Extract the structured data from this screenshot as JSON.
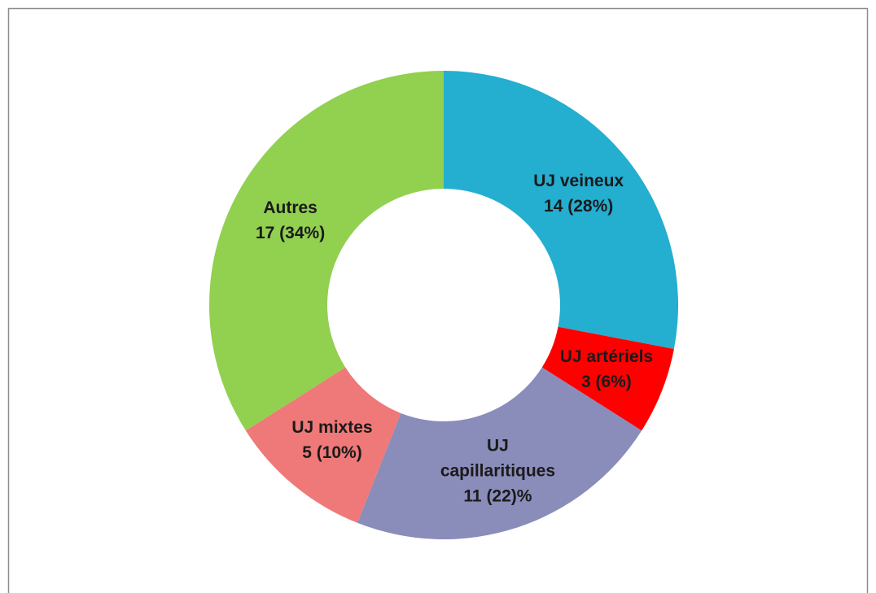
{
  "chart_data": {
    "type": "donut",
    "categories": [
      "UJ veineux",
      "UJ artériels",
      "UJ capillaritiques",
      "UJ mixtes",
      "Autres"
    ],
    "values": [
      14,
      3,
      11,
      5,
      17
    ],
    "value_labels": [
      "14 (28%)",
      "3 (6%)",
      "11 (22)%",
      "5 (10%)",
      "17 (34%)"
    ],
    "colors": [
      "#24aed0",
      "#ff0000",
      "#8a8cba",
      "#ef7878",
      "#92d050"
    ]
  }
}
